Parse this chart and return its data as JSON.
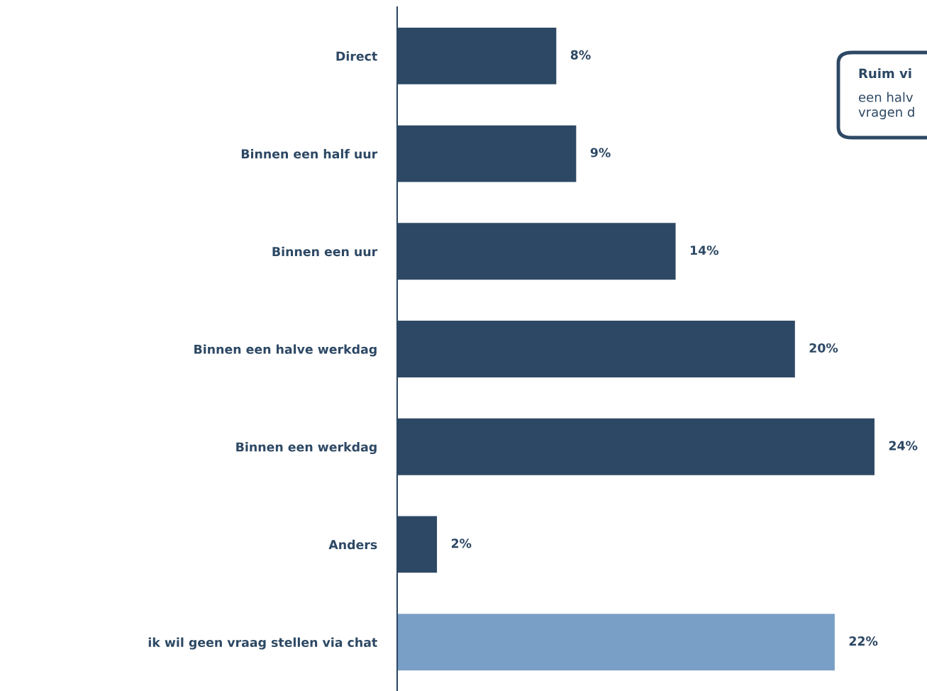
{
  "chart_data": {
    "type": "bar",
    "orientation": "horizontal",
    "categories": [
      "Direct",
      "Binnen een half uur",
      "Binnen een uur",
      "Binnen een halve werkdag",
      "Binnen een werkdag",
      "Anders",
      "ik wil geen vraag stellen via chat"
    ],
    "values": [
      8,
      9,
      14,
      20,
      24,
      2,
      22
    ],
    "colors": [
      "#2d4864",
      "#2d4864",
      "#2d4864",
      "#2d4864",
      "#2d4864",
      "#2d4864",
      "#7a9fc6"
    ],
    "value_labels": [
      "8%",
      "9%",
      "14%",
      "20%",
      "24%",
      "2%",
      "22%"
    ],
    "tick_labels": "y",
    "grid": false,
    "legend": false,
    "annotations": [
      "Ruim vi",
      "een halv\nvragen d"
    ]
  }
}
